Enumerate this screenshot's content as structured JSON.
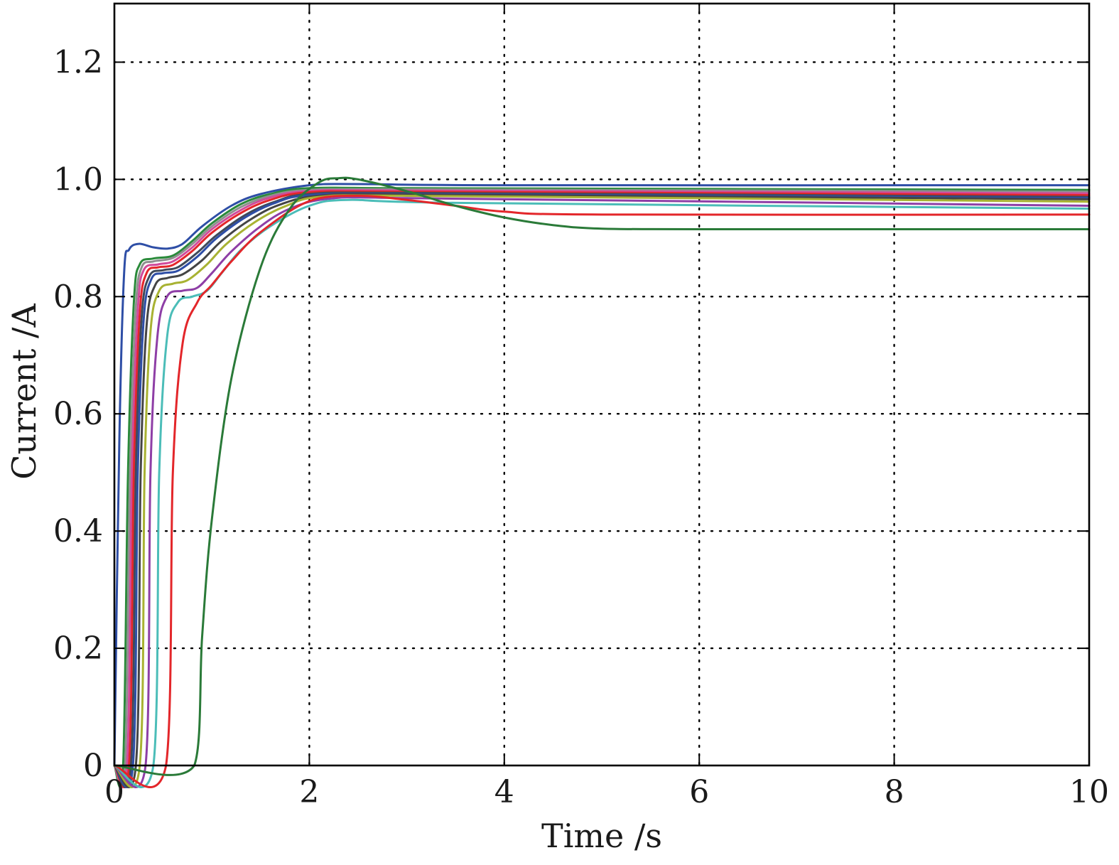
{
  "chart_data": {
    "type": "line",
    "title": "",
    "xlabel": "Time /s",
    "ylabel": "Current /A",
    "xlim": [
      0,
      10
    ],
    "ylim": [
      0,
      1.3
    ],
    "x_ticks": [
      0,
      2,
      4,
      6,
      8,
      10
    ],
    "x_tick_labels": [
      "0",
      "2",
      "4",
      "6",
      "8",
      "10"
    ],
    "y_ticks": [
      0,
      0.2,
      0.4,
      0.6,
      0.8,
      1.0,
      1.2
    ],
    "y_tick_labels": [
      "0",
      "0.2",
      "0.4",
      "0.6",
      "0.8",
      "1.0",
      "1.2"
    ],
    "grid": true,
    "legend": "none",
    "series": [
      {
        "color": "#2e4ea6",
        "points": [
          [
            0.0,
            0.0
          ],
          [
            0.05,
            0.55
          ],
          [
            0.1,
            0.84
          ],
          [
            0.15,
            0.88
          ],
          [
            0.25,
            0.89
          ],
          [
            0.4,
            0.884
          ],
          [
            0.55,
            0.882
          ],
          [
            0.7,
            0.89
          ],
          [
            0.9,
            0.92
          ],
          [
            1.2,
            0.955
          ],
          [
            1.5,
            0.975
          ],
          [
            2.0,
            0.99
          ],
          [
            2.5,
            0.992
          ],
          [
            4.0,
            0.99
          ],
          [
            10.0,
            0.99
          ]
        ]
      },
      {
        "color": "#2a8a3a",
        "points": [
          [
            0.0,
            0.0
          ],
          [
            0.09,
            0.0
          ],
          [
            0.14,
            0.5
          ],
          [
            0.2,
            0.79
          ],
          [
            0.26,
            0.855
          ],
          [
            0.4,
            0.865
          ],
          [
            0.6,
            0.87
          ],
          [
            0.8,
            0.895
          ],
          [
            1.0,
            0.925
          ],
          [
            1.3,
            0.958
          ],
          [
            1.6,
            0.975
          ],
          [
            2.0,
            0.985
          ],
          [
            3.0,
            0.985
          ],
          [
            10.0,
            0.982
          ]
        ]
      },
      {
        "color": "#8f8f8f",
        "points": [
          [
            0.0,
            0.0
          ],
          [
            0.11,
            0.0
          ],
          [
            0.16,
            0.5
          ],
          [
            0.22,
            0.78
          ],
          [
            0.28,
            0.85
          ],
          [
            0.4,
            0.86
          ],
          [
            0.6,
            0.866
          ],
          [
            0.8,
            0.89
          ],
          [
            1.0,
            0.92
          ],
          [
            1.3,
            0.953
          ],
          [
            1.6,
            0.972
          ],
          [
            2.0,
            0.982
          ],
          [
            3.0,
            0.983
          ],
          [
            10.0,
            0.979
          ]
        ]
      },
      {
        "color": "#d24a9a",
        "points": [
          [
            0.0,
            0.0
          ],
          [
            0.13,
            0.0
          ],
          [
            0.18,
            0.5
          ],
          [
            0.24,
            0.775
          ],
          [
            0.3,
            0.845
          ],
          [
            0.45,
            0.855
          ],
          [
            0.6,
            0.86
          ],
          [
            0.8,
            0.884
          ],
          [
            1.0,
            0.915
          ],
          [
            1.3,
            0.948
          ],
          [
            1.6,
            0.969
          ],
          [
            2.0,
            0.98
          ],
          [
            3.0,
            0.981
          ],
          [
            10.0,
            0.976
          ]
        ]
      },
      {
        "color": "#e3262a",
        "points": [
          [
            0.0,
            0.0
          ],
          [
            0.15,
            0.0
          ],
          [
            0.2,
            0.5
          ],
          [
            0.26,
            0.77
          ],
          [
            0.33,
            0.84
          ],
          [
            0.45,
            0.85
          ],
          [
            0.6,
            0.854
          ],
          [
            0.8,
            0.878
          ],
          [
            1.0,
            0.909
          ],
          [
            1.3,
            0.943
          ],
          [
            1.6,
            0.965
          ],
          [
            2.0,
            0.978
          ],
          [
            3.0,
            0.979
          ],
          [
            10.0,
            0.973
          ]
        ]
      },
      {
        "color": "#3f4a5a",
        "points": [
          [
            0.0,
            0.0
          ],
          [
            0.17,
            0.0
          ],
          [
            0.22,
            0.5
          ],
          [
            0.28,
            0.765
          ],
          [
            0.36,
            0.835
          ],
          [
            0.5,
            0.845
          ],
          [
            0.65,
            0.85
          ],
          [
            0.85,
            0.875
          ],
          [
            1.05,
            0.905
          ],
          [
            1.35,
            0.94
          ],
          [
            1.65,
            0.962
          ],
          [
            2.0,
            0.975
          ],
          [
            3.0,
            0.977
          ],
          [
            10.0,
            0.97
          ]
        ]
      },
      {
        "color": "#2e4ea6",
        "points": [
          [
            0.0,
            0.0
          ],
          [
            0.19,
            0.0
          ],
          [
            0.24,
            0.5
          ],
          [
            0.3,
            0.76
          ],
          [
            0.38,
            0.83
          ],
          [
            0.5,
            0.84
          ],
          [
            0.65,
            0.844
          ],
          [
            0.85,
            0.868
          ],
          [
            1.05,
            0.9
          ],
          [
            1.35,
            0.936
          ],
          [
            1.65,
            0.96
          ],
          [
            2.0,
            0.973
          ],
          [
            3.0,
            0.975
          ],
          [
            10.0,
            0.968
          ]
        ]
      },
      {
        "color": "#444444",
        "points": [
          [
            0.0,
            0.0
          ],
          [
            0.22,
            0.0
          ],
          [
            0.27,
            0.5
          ],
          [
            0.33,
            0.75
          ],
          [
            0.42,
            0.82
          ],
          [
            0.55,
            0.832
          ],
          [
            0.7,
            0.838
          ],
          [
            0.9,
            0.862
          ],
          [
            1.1,
            0.895
          ],
          [
            1.4,
            0.932
          ],
          [
            1.7,
            0.957
          ],
          [
            2.1,
            0.972
          ],
          [
            3.0,
            0.974
          ],
          [
            10.0,
            0.966
          ]
        ]
      },
      {
        "color": "#a8b232",
        "points": [
          [
            0.0,
            0.0
          ],
          [
            0.26,
            0.0
          ],
          [
            0.31,
            0.5
          ],
          [
            0.37,
            0.74
          ],
          [
            0.46,
            0.81
          ],
          [
            0.6,
            0.822
          ],
          [
            0.75,
            0.828
          ],
          [
            0.95,
            0.855
          ],
          [
            1.15,
            0.89
          ],
          [
            1.45,
            0.928
          ],
          [
            1.75,
            0.954
          ],
          [
            2.1,
            0.97
          ],
          [
            3.0,
            0.972
          ],
          [
            10.0,
            0.962
          ]
        ]
      },
      {
        "color": "#8e3ea6",
        "points": [
          [
            0.0,
            0.0
          ],
          [
            0.32,
            0.0
          ],
          [
            0.37,
            0.5
          ],
          [
            0.44,
            0.73
          ],
          [
            0.54,
            0.8
          ],
          [
            0.7,
            0.81
          ],
          [
            0.85,
            0.815
          ],
          [
            1.0,
            0.84
          ],
          [
            1.2,
            0.877
          ],
          [
            1.5,
            0.92
          ],
          [
            1.8,
            0.95
          ],
          [
            2.2,
            0.967
          ],
          [
            3.0,
            0.968
          ],
          [
            10.0,
            0.955
          ]
        ]
      },
      {
        "color": "#4bbdb8",
        "points": [
          [
            0.0,
            0.0
          ],
          [
            0.4,
            0.0
          ],
          [
            0.46,
            0.5
          ],
          [
            0.54,
            0.73
          ],
          [
            0.65,
            0.79
          ],
          [
            0.8,
            0.8
          ],
          [
            0.95,
            0.81
          ],
          [
            1.1,
            0.84
          ],
          [
            1.3,
            0.88
          ],
          [
            1.6,
            0.92
          ],
          [
            2.0,
            0.955
          ],
          [
            2.4,
            0.965
          ],
          [
            3.5,
            0.96
          ],
          [
            10.0,
            0.95
          ]
        ]
      },
      {
        "color": "#e3262a",
        "points": [
          [
            0.0,
            0.0
          ],
          [
            0.53,
            0.0
          ],
          [
            0.6,
            0.5
          ],
          [
            0.7,
            0.72
          ],
          [
            0.85,
            0.79
          ],
          [
            1.0,
            0.82
          ],
          [
            1.2,
            0.86
          ],
          [
            1.5,
            0.91
          ],
          [
            2.0,
            0.963
          ],
          [
            2.5,
            0.972
          ],
          [
            3.0,
            0.965
          ],
          [
            3.5,
            0.955
          ],
          [
            4.0,
            0.945
          ],
          [
            5.0,
            0.94
          ],
          [
            10.0,
            0.94
          ]
        ]
      },
      {
        "color": "#2a7a38",
        "points": [
          [
            0.0,
            0.0
          ],
          [
            0.82,
            0.0
          ],
          [
            0.9,
            0.22
          ],
          [
            1.0,
            0.42
          ],
          [
            1.2,
            0.66
          ],
          [
            1.5,
            0.85
          ],
          [
            1.8,
            0.95
          ],
          [
            2.1,
            0.995
          ],
          [
            2.3,
            1.002
          ],
          [
            2.5,
            1.0
          ],
          [
            3.0,
            0.98
          ],
          [
            3.5,
            0.955
          ],
          [
            4.0,
            0.935
          ],
          [
            4.5,
            0.922
          ],
          [
            5.0,
            0.916
          ],
          [
            6.0,
            0.915
          ],
          [
            10.0,
            0.915
          ]
        ]
      }
    ]
  }
}
